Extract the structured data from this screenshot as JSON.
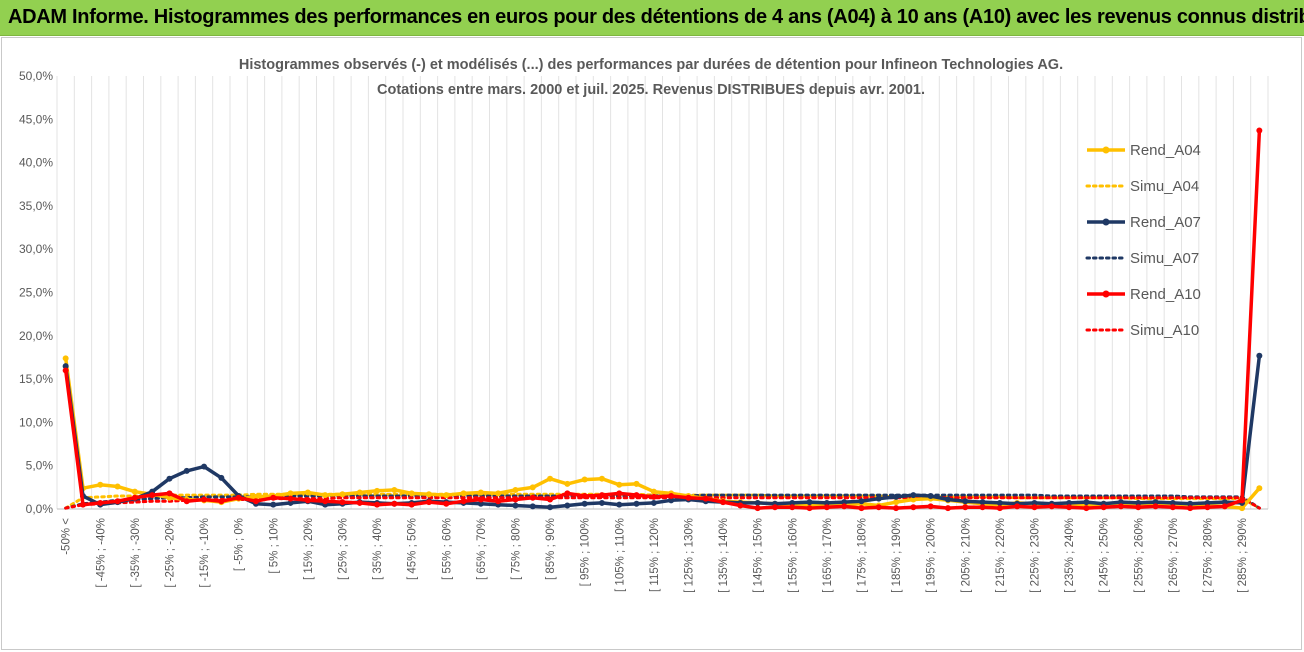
{
  "header": {
    "title": "ADAM Informe. Histogrammes des performances en euros pour des détentions de 4 ans (A04) à 10 ans (A10) avec les revenus connus distribués"
  },
  "chart_data": {
    "type": "line",
    "title": "Histogrammes observés (-) et modélisés (...) des performances par durées de détention pour Infineon Technologies AG.",
    "subtitle": "Cotations entre mars. 2000 et juil. 2025. Revenus DISTRIBUES depuis avr. 2001.",
    "xlabel": "",
    "ylabel": "",
    "ylim": [
      0,
      50
    ],
    "yticks": [
      "0,0%",
      "5,0%",
      "10,0%",
      "15,0%",
      "20,0%",
      "25,0%",
      "30,0%",
      "35,0%",
      "40,0%",
      "45,0%",
      "50,0%"
    ],
    "grid": "vertical",
    "legend_position": "top-right",
    "x_tick_labels": [
      "-50% <",
      "[ -45% ; -40%",
      "[ -35% ; -30%",
      "[ -25% ; -20%",
      "[ -15% ; -10%",
      "[ -5% ; 0%",
      "[ 5% ; 10%",
      "[ 15% ; 20%",
      "[ 25% ; 30%",
      "[ 35% ; 40%",
      "[ 45% ; 50%",
      "[ 55% ; 60%",
      "[ 65% ; 70%",
      "[ 75% ; 80%",
      "[ 85% ; 90%",
      "[ 95% ; 100%",
      "[ 105% ; 110%",
      "[ 115% ; 120%",
      "[ 125% ; 130%",
      "[ 135% ; 140%",
      "[ 145% ; 150%",
      "[ 155% ; 160%",
      "[ 165% ; 170%",
      "[ 175% ; 180%",
      "[ 185% ; 190%",
      "[ 195% ; 200%",
      "[ 205% ; 210%",
      "[ 215% ; 220%",
      "[ 225% ; 230%",
      "[ 235% ; 240%",
      "[ 245% ; 250%",
      "[ 255% ; 260%",
      "[ 265% ; 270%",
      "[ 275% ; 280%",
      "[ 285% ; 290%"
    ],
    "n_points": 70,
    "series": [
      {
        "name": "Rend_A04",
        "color": "#ffc000",
        "style": "solid",
        "markers": true,
        "values": [
          17.4,
          2.4,
          2.8,
          2.6,
          2.0,
          1.7,
          1.3,
          1.1,
          1.0,
          0.8,
          1.2,
          1.4,
          1.5,
          1.8,
          1.9,
          1.6,
          1.7,
          1.9,
          2.1,
          2.2,
          1.8,
          1.7,
          1.6,
          1.8,
          1.9,
          1.8,
          2.2,
          2.5,
          3.5,
          2.9,
          3.4,
          3.5,
          2.8,
          2.9,
          2.0,
          1.8,
          1.5,
          1.2,
          0.9,
          0.8,
          0.7,
          0.6,
          0.5,
          0.4,
          0.4,
          0.5,
          0.6,
          0.4,
          0.8,
          1.1,
          1.2,
          1.0,
          0.8,
          0.6,
          0.5,
          0.7,
          0.6,
          0.5,
          0.5,
          0.4,
          0.6,
          0.6,
          0.4,
          0.5,
          0.6,
          0.5,
          0.4,
          0.3,
          0.1,
          2.4
        ]
      },
      {
        "name": "Simu_A04",
        "color": "#ffc000",
        "style": "dotted",
        "markers": false,
        "values": [
          0.1,
          1.3,
          1.4,
          1.5,
          1.5,
          1.5,
          1.6,
          1.6,
          1.6,
          1.6,
          1.6,
          1.7,
          1.7,
          1.7,
          1.7,
          1.7,
          1.7,
          1.7,
          1.7,
          1.7,
          1.7,
          1.7,
          1.7,
          1.7,
          1.7,
          1.7,
          1.7,
          1.7,
          1.7,
          1.7,
          1.7,
          1.7,
          1.7,
          1.7,
          1.6,
          1.6,
          1.6,
          1.6,
          1.6,
          1.6,
          1.6,
          1.5,
          1.5,
          1.5,
          1.5,
          1.5,
          1.5,
          1.5,
          1.4,
          1.4,
          1.4,
          1.4,
          1.4,
          1.4,
          1.4,
          1.3,
          1.3,
          1.3,
          1.3,
          1.3,
          1.3,
          1.3,
          1.2,
          1.2,
          1.2,
          1.2,
          1.2,
          1.2,
          1.2,
          0.1
        ]
      },
      {
        "name": "Rend_A07",
        "color": "#1f3864",
        "style": "solid",
        "markers": true,
        "values": [
          16.5,
          1.5,
          0.5,
          0.8,
          1.2,
          2.0,
          3.5,
          4.4,
          4.9,
          3.6,
          1.5,
          0.6,
          0.5,
          0.7,
          0.9,
          0.5,
          0.6,
          0.8,
          0.7,
          0.6,
          0.7,
          0.9,
          0.8,
          0.7,
          0.6,
          0.5,
          0.4,
          0.3,
          0.2,
          0.4,
          0.6,
          0.7,
          0.5,
          0.6,
          0.7,
          1.0,
          1.1,
          0.9,
          0.8,
          0.7,
          0.7,
          0.6,
          0.7,
          0.8,
          0.7,
          0.8,
          0.9,
          1.2,
          1.4,
          1.6,
          1.5,
          1.1,
          0.9,
          0.8,
          0.7,
          0.6,
          0.7,
          0.6,
          0.7,
          0.8,
          0.6,
          0.8,
          0.7,
          0.8,
          0.7,
          0.6,
          0.7,
          0.8,
          0.7,
          17.7
        ]
      },
      {
        "name": "Simu_A07",
        "color": "#1f3864",
        "style": "dotted",
        "markers": false,
        "values": [
          0.1,
          0.6,
          0.8,
          1.0,
          1.1,
          1.2,
          1.3,
          1.3,
          1.4,
          1.4,
          1.4,
          1.4,
          1.5,
          1.5,
          1.5,
          1.5,
          1.5,
          1.5,
          1.5,
          1.5,
          1.5,
          1.5,
          1.5,
          1.5,
          1.5,
          1.5,
          1.5,
          1.5,
          1.5,
          1.5,
          1.5,
          1.5,
          1.5,
          1.5,
          1.5,
          1.5,
          1.5,
          1.6,
          1.6,
          1.6,
          1.6,
          1.6,
          1.6,
          1.6,
          1.6,
          1.6,
          1.6,
          1.6,
          1.6,
          1.6,
          1.6,
          1.6,
          1.6,
          1.6,
          1.6,
          1.6,
          1.6,
          1.5,
          1.5,
          1.5,
          1.5,
          1.5,
          1.5,
          1.5,
          1.5,
          1.4,
          1.4,
          1.4,
          1.4,
          0.1
        ]
      },
      {
        "name": "Rend_A10",
        "color": "#ff0000",
        "style": "solid",
        "markers": true,
        "values": [
          16.0,
          0.5,
          0.7,
          0.9,
          1.3,
          1.6,
          1.8,
          0.9,
          1.1,
          0.9,
          1.3,
          0.9,
          1.3,
          1.2,
          1.0,
          0.9,
          0.8,
          0.7,
          0.5,
          0.6,
          0.5,
          0.8,
          0.6,
          0.9,
          1.1,
          0.9,
          1.1,
          1.3,
          1.1,
          1.8,
          1.5,
          1.6,
          1.8,
          1.6,
          1.4,
          1.5,
          1.3,
          1.2,
          0.8,
          0.4,
          0.1,
          0.2,
          0.2,
          0.1,
          0.2,
          0.3,
          0.1,
          0.2,
          0.1,
          0.2,
          0.3,
          0.1,
          0.2,
          0.2,
          0.1,
          0.3,
          0.2,
          0.3,
          0.2,
          0.1,
          0.2,
          0.3,
          0.2,
          0.3,
          0.2,
          0.1,
          0.2,
          0.3,
          1.0,
          43.7
        ]
      },
      {
        "name": "Simu_A10",
        "color": "#ff0000",
        "style": "dotted",
        "markers": false,
        "values": [
          0.1,
          0.5,
          0.6,
          0.7,
          0.8,
          0.9,
          0.9,
          1.0,
          1.0,
          1.1,
          1.1,
          1.1,
          1.2,
          1.2,
          1.2,
          1.2,
          1.3,
          1.3,
          1.3,
          1.3,
          1.3,
          1.3,
          1.3,
          1.3,
          1.3,
          1.3,
          1.3,
          1.3,
          1.3,
          1.3,
          1.3,
          1.3,
          1.3,
          1.3,
          1.3,
          1.3,
          1.3,
          1.3,
          1.3,
          1.3,
          1.3,
          1.3,
          1.3,
          1.3,
          1.3,
          1.3,
          1.3,
          1.3,
          1.3,
          1.3,
          1.3,
          1.3,
          1.3,
          1.3,
          1.3,
          1.3,
          1.3,
          1.3,
          1.3,
          1.3,
          1.3,
          1.3,
          1.3,
          1.3,
          1.3,
          1.3,
          1.3,
          1.3,
          1.3,
          0.1
        ]
      }
    ]
  }
}
